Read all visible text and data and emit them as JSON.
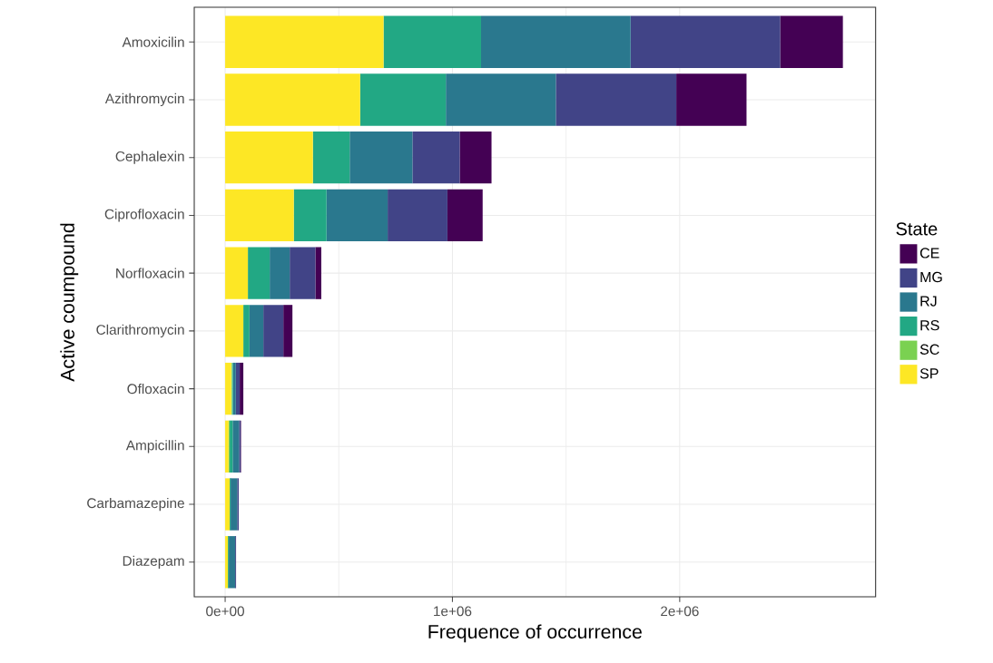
{
  "chart_data": {
    "type": "bar",
    "orientation": "horizontal",
    "stacked": true,
    "xlabel": "Frequence of occurrence",
    "ylabel": "Active coumpound",
    "legend_title": "State",
    "legend": "right",
    "grid": true,
    "categories": [
      "Amoxicilin",
      "Azithromycin",
      "Cephalexin",
      "Ciprofloxacin",
      "Norfloxacin",
      "Clarithromycin",
      "Ofloxacin",
      "Ampicillin",
      "Carbamazepine",
      "Diazepam"
    ],
    "xlim": [
      -136000,
      2862000
    ],
    "xticks": [
      {
        "value": 0,
        "label": "0e+00"
      },
      {
        "value": 1000000,
        "label": "1e+06"
      },
      {
        "value": 2000000,
        "label": "2e+06"
      }
    ],
    "series": [
      {
        "name": "SP",
        "color": "#fde725",
        "values": [
          697000,
          594000,
          386000,
          302000,
          100000,
          80000,
          27000,
          15000,
          20000,
          12000
        ]
      },
      {
        "name": "SC",
        "color": "#7ad151",
        "values": [
          0,
          0,
          0,
          0,
          0,
          0,
          3000,
          5000,
          0,
          0
        ]
      },
      {
        "name": "RS",
        "color": "#22a884",
        "values": [
          429000,
          377000,
          162000,
          144000,
          96000,
          27000,
          4000,
          13000,
          4000,
          4000
        ]
      },
      {
        "name": "RJ",
        "color": "#2a788e",
        "values": [
          658000,
          484000,
          276000,
          269000,
          88000,
          61000,
          13000,
          28000,
          29000,
          28000
        ]
      },
      {
        "name": "MG",
        "color": "#414487",
        "values": [
          658000,
          530000,
          208000,
          263000,
          113000,
          88000,
          17000,
          7000,
          7000,
          4000
        ]
      },
      {
        "name": "CE",
        "color": "#440154",
        "values": [
          276000,
          309000,
          140000,
          155000,
          26000,
          40000,
          16000,
          2000,
          0,
          0
        ]
      }
    ]
  }
}
